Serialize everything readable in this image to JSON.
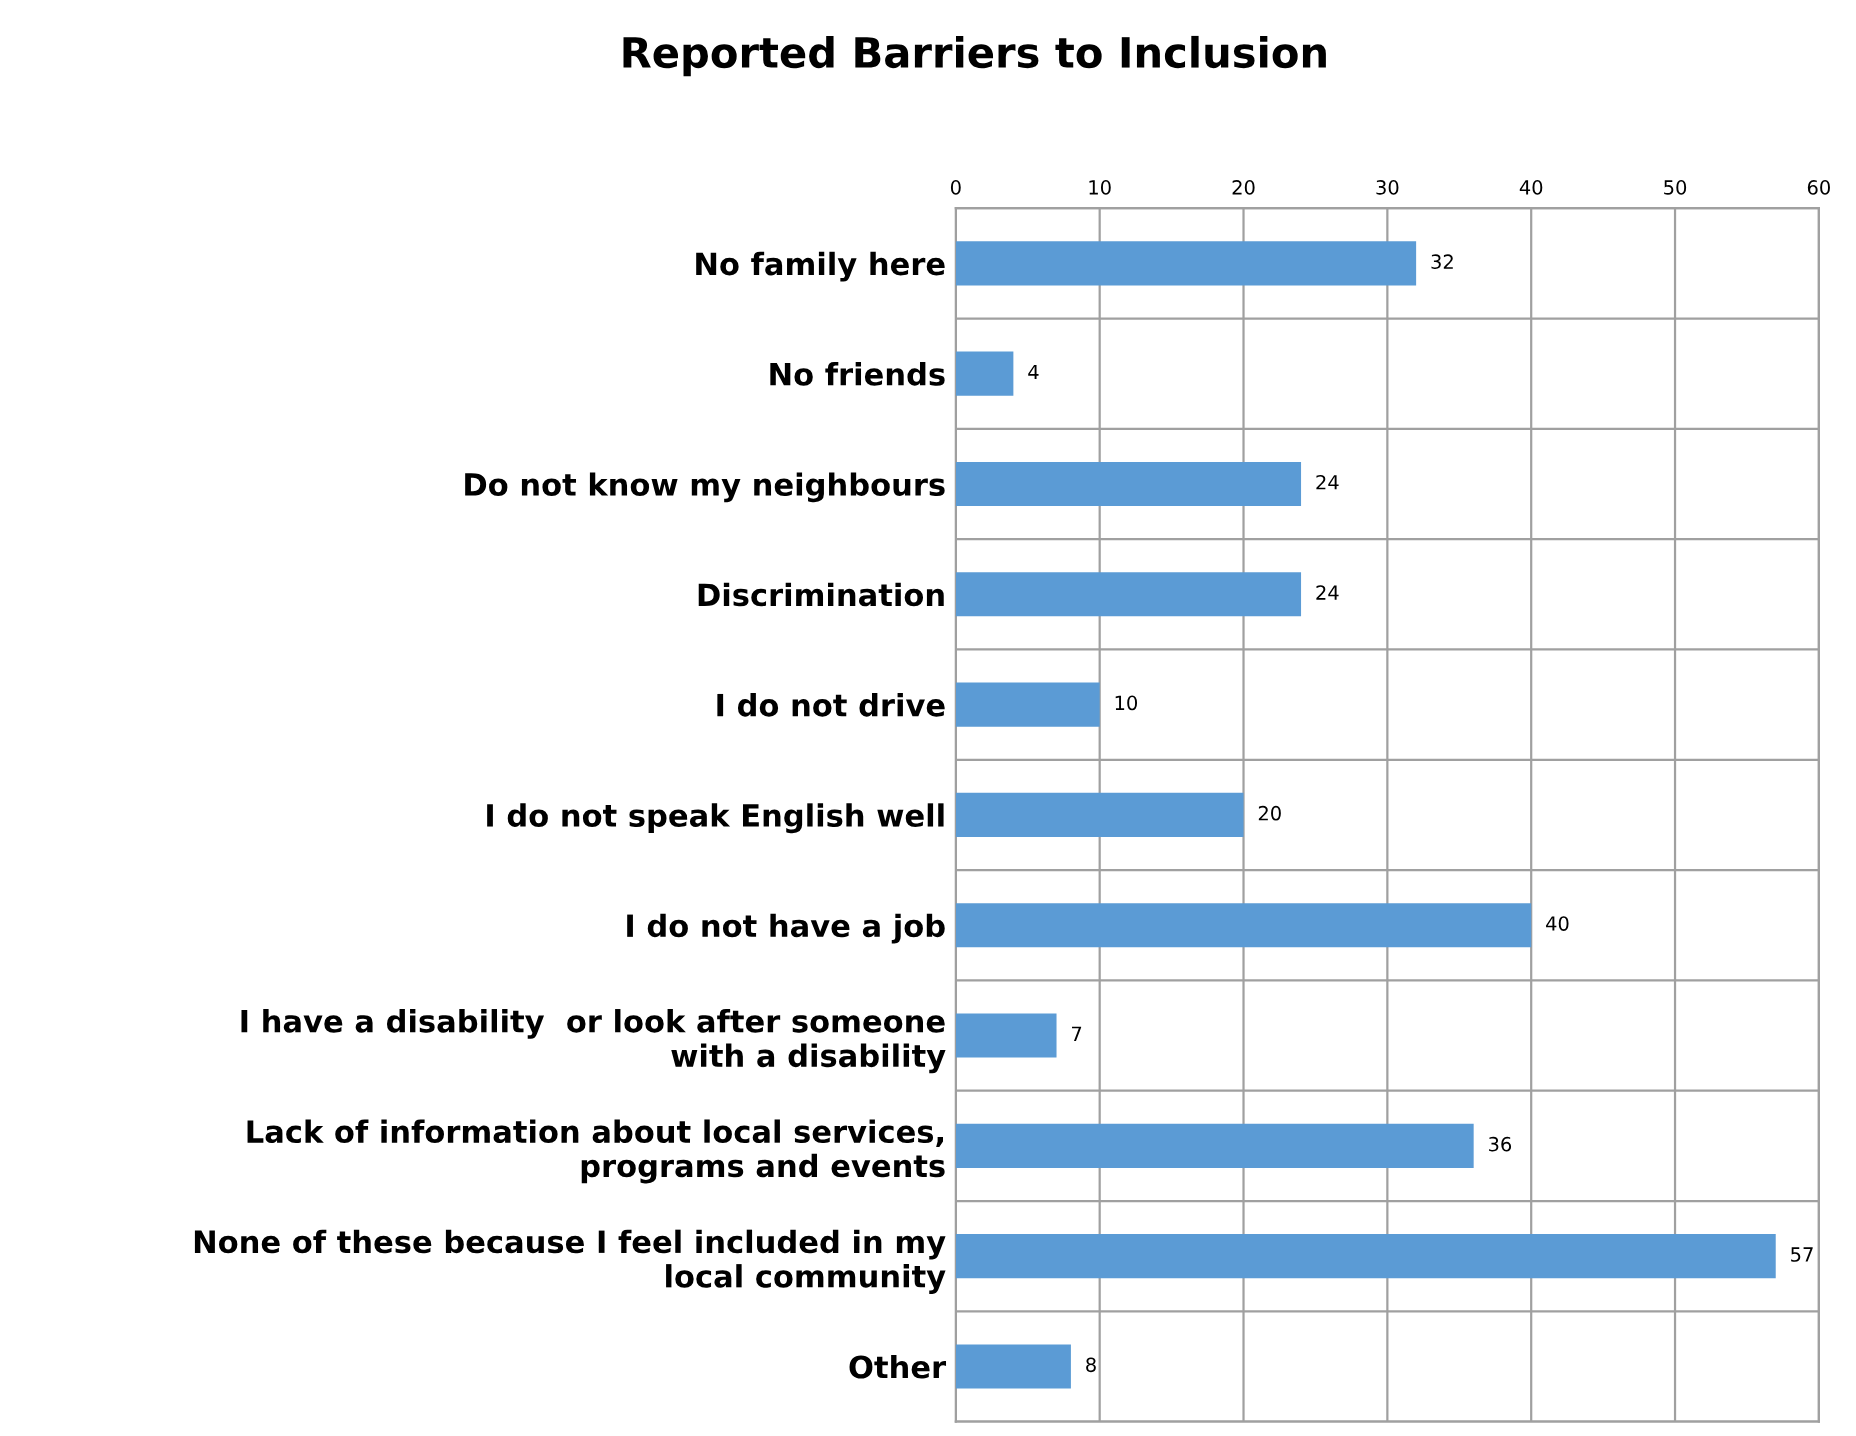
{
  "chart_data": {
    "type": "bar",
    "orientation": "horizontal",
    "title": "Reported Barriers to Inclusion",
    "categories": [
      "No family here",
      "No friends",
      "Do not know my neighbours",
      "Discrimination",
      "I do not drive",
      "I do not speak English well",
      "I do not have a job",
      "I have a disability  or look after someone with a disability",
      "Lack of information about local services, programs and events",
      "None of these because I feel included in my local community",
      "Other"
    ],
    "values": [
      32,
      4,
      24,
      24,
      10,
      20,
      40,
      7,
      36,
      57,
      8
    ],
    "color": "#5b9bd5",
    "xlim": [
      0,
      60
    ],
    "xticks": [
      0,
      10,
      20,
      30,
      40,
      50,
      60
    ],
    "grid": true,
    "data_labels": true
  }
}
